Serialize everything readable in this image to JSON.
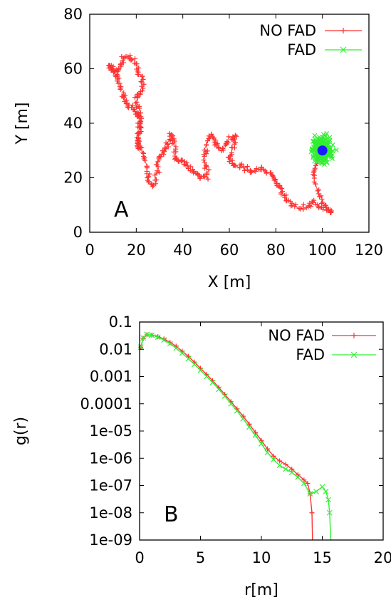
{
  "chart_data": [
    {
      "type": "scatter",
      "panel_label": "A",
      "xlabel": "X [m]",
      "ylabel": "Y [m]",
      "xlim": [
        0,
        120
      ],
      "ylim": [
        0,
        80
      ],
      "xticks": [
        "0",
        "20",
        "40",
        "60",
        "80",
        "100",
        "120"
      ],
      "yticks": [
        "0",
        "20",
        "40",
        "60",
        "80"
      ],
      "legend_position": "top-right",
      "series": [
        {
          "name": "NO FAD",
          "color": "#ff3333",
          "marker": "plus",
          "path": [
            [
              100,
              30
            ],
            [
              98,
              26
            ],
            [
              96,
              21
            ],
            [
              98,
              15
            ],
            [
              101,
              10
            ],
            [
              104,
              7
            ],
            [
              100,
              9
            ],
            [
              96,
              11
            ],
            [
              92,
              9
            ],
            [
              88,
              10
            ],
            [
              84,
              12
            ],
            [
              82,
              16
            ],
            [
              80,
              19
            ],
            [
              78,
              21
            ],
            [
              74,
              23
            ],
            [
              70,
              22
            ],
            [
              66,
              24
            ],
            [
              62,
              25
            ],
            [
              60,
              27
            ],
            [
              62,
              32
            ],
            [
              62,
              36
            ],
            [
              59,
              33
            ],
            [
              56,
              30
            ],
            [
              54,
              33
            ],
            [
              52,
              36
            ],
            [
              50,
              31
            ],
            [
              49,
              26
            ],
            [
              51,
              21
            ],
            [
              48,
              20
            ],
            [
              45,
              22
            ],
            [
              42,
              25
            ],
            [
              39,
              26
            ],
            [
              37,
              27
            ],
            [
              36,
              32
            ],
            [
              35,
              36
            ],
            [
              34,
              33
            ],
            [
              32,
              30
            ],
            [
              30,
              27
            ],
            [
              29,
              22
            ],
            [
              27,
              17
            ],
            [
              25,
              20
            ],
            [
              24,
              26
            ],
            [
              22,
              31
            ],
            [
              20,
              32
            ],
            [
              21,
              37
            ],
            [
              22,
              42
            ],
            [
              21,
              46
            ],
            [
              20,
              50
            ],
            [
              23,
              53
            ],
            [
              22,
              57
            ],
            [
              20,
              61
            ],
            [
              17,
              65
            ],
            [
              14,
              63
            ],
            [
              12,
              59
            ],
            [
              10,
              60
            ],
            [
              8,
              61
            ],
            [
              11,
              58
            ],
            [
              13,
              54
            ],
            [
              14,
              50
            ],
            [
              16,
              47
            ],
            [
              19,
              45
            ],
            [
              21,
              42
            ],
            [
              22,
              38
            ],
            [
              20,
              34
            ],
            [
              22,
              31
            ]
          ]
        },
        {
          "name": "FAD",
          "color": "#33ee33",
          "marker": "cross",
          "center": [
            100,
            30
          ],
          "spread": [
            8,
            9
          ]
        }
      ],
      "fad_position": {
        "x": 100,
        "y": 30,
        "color": "#1a1aff"
      }
    },
    {
      "type": "line",
      "panel_label": "B",
      "xlabel": "r[m]",
      "ylabel": "g(r)",
      "xlim": [
        0,
        20
      ],
      "ylim": [
        1e-09,
        0.1
      ],
      "yscale": "log",
      "xticks": [
        "0",
        "5",
        "10",
        "15",
        "20"
      ],
      "yticks": [
        "1e-09",
        "1e-08",
        "1e-07",
        "1e-06",
        "1e-05",
        "0.0001",
        "0.001",
        "0.01",
        "0.1"
      ],
      "legend_position": "top-right",
      "series": [
        {
          "name": "NO FAD",
          "color": "#ff3333",
          "marker": "plus",
          "x": [
            0.1,
            0.3,
            0.6,
            1,
            1.5,
            2,
            2.5,
            3,
            3.5,
            4,
            4.5,
            5,
            5.5,
            6,
            6.5,
            7,
            7.5,
            8,
            8.5,
            9,
            9.5,
            10,
            10.5,
            11,
            11.5,
            12,
            12.5,
            13,
            13.5,
            13.8,
            14.0,
            14.15,
            14.2
          ],
          "y": [
            0.012,
            0.025,
            0.034,
            0.033,
            0.029,
            0.024,
            0.018,
            0.013,
            0.0085,
            0.0055,
            0.0034,
            0.002,
            0.0012,
            0.0007,
            0.0004,
            0.00022,
            0.00012,
            6.5e-05,
            3.5e-05,
            1.8e-05,
            9e-06,
            4.5e-06,
            2.2e-06,
            1.2e-06,
            8e-07,
            6e-07,
            4e-07,
            2.5e-07,
            1.6e-07,
            1.2e-07,
            5e-08,
            1e-08,
            1e-09
          ]
        },
        {
          "name": "FAD",
          "color": "#33ee33",
          "marker": "cross",
          "x": [
            0.1,
            0.3,
            0.6,
            1,
            1.5,
            2,
            2.5,
            3,
            3.5,
            4,
            4.5,
            5,
            5.5,
            6,
            6.5,
            7,
            7.5,
            8,
            8.5,
            9,
            9.5,
            10,
            10.5,
            11,
            11.5,
            12,
            12.5,
            13,
            13.5,
            14,
            14.5,
            15,
            15.3,
            15.5,
            15.6,
            15.7
          ],
          "y": [
            0.012,
            0.026,
            0.035,
            0.033,
            0.028,
            0.022,
            0.016,
            0.011,
            0.0072,
            0.0045,
            0.0028,
            0.0017,
            0.001,
            0.0006,
            0.00034,
            0.00019,
            0.0001,
            5.5e-05,
            2.8e-05,
            1.4e-05,
            7e-06,
            3.4e-06,
            1.6e-06,
            9e-07,
            5.5e-07,
            4e-07,
            3e-07,
            2e-07,
            1.2e-07,
            5e-08,
            6e-08,
            9e-08,
            6e-08,
            3e-08,
            1e-08,
            1e-09
          ]
        }
      ]
    }
  ]
}
